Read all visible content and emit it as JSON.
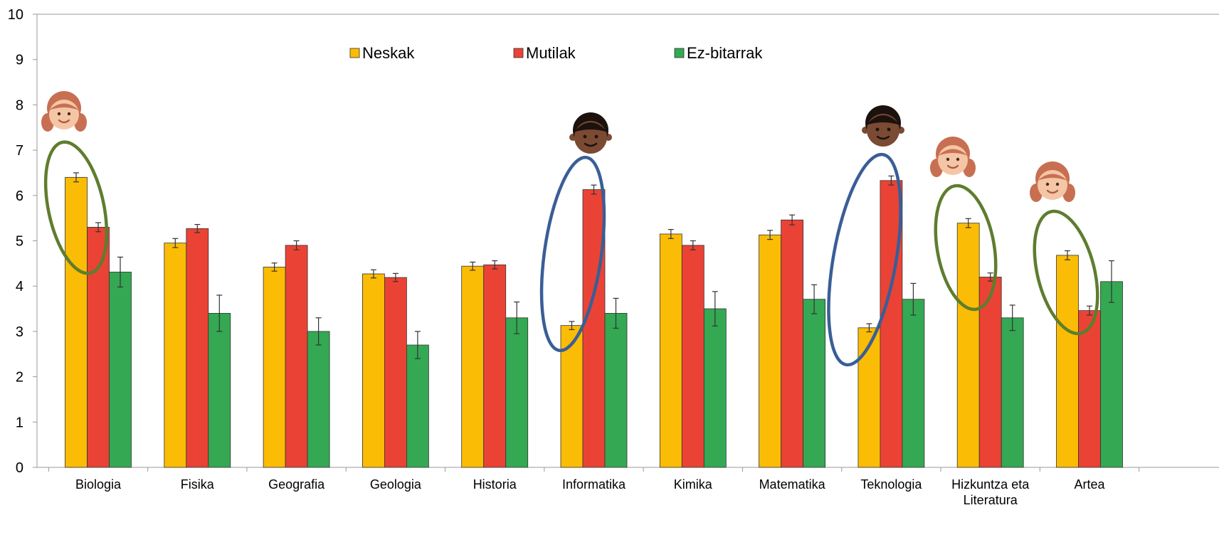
{
  "chart_data": {
    "type": "bar",
    "title": "",
    "xlabel": "",
    "ylabel": "",
    "ylim": [
      0,
      10
    ],
    "yticks": [
      0,
      1,
      2,
      3,
      4,
      5,
      6,
      7,
      8,
      9,
      10
    ],
    "grid": false,
    "legend_position": "top-center",
    "categories": [
      [
        "Biologia"
      ],
      [
        "Fisika"
      ],
      [
        "Geografia"
      ],
      [
        "Geologia"
      ],
      [
        "Historia"
      ],
      [
        "Informatika"
      ],
      [
        "Kimika"
      ],
      [
        "Matematika"
      ],
      [
        "Teknologia"
      ],
      [
        "Hizkuntza eta",
        "Literatura"
      ],
      [
        "Artea"
      ]
    ],
    "series": [
      {
        "name": "Neskak",
        "color": "#FBBC05",
        "values": [
          6.4,
          4.95,
          4.42,
          4.27,
          4.44,
          3.13,
          5.15,
          5.13,
          3.08,
          5.39,
          4.68
        ],
        "errors": [
          0.1,
          0.1,
          0.09,
          0.09,
          0.09,
          0.09,
          0.1,
          0.1,
          0.09,
          0.1,
          0.1
        ]
      },
      {
        "name": "Mutilak",
        "color": "#EA4335",
        "values": [
          5.3,
          5.27,
          4.9,
          4.19,
          4.47,
          6.13,
          4.9,
          5.46,
          6.33,
          4.2,
          3.46
        ],
        "errors": [
          0.1,
          0.09,
          0.1,
          0.09,
          0.09,
          0.1,
          0.1,
          0.11,
          0.1,
          0.09,
          0.1
        ]
      },
      {
        "name": "Ez-bitarrak",
        "color": "#34A853",
        "values": [
          4.31,
          3.4,
          3.0,
          2.7,
          3.3,
          3.4,
          3.5,
          3.71,
          3.71,
          3.3,
          4.1
        ],
        "errors": [
          0.33,
          0.4,
          0.3,
          0.3,
          0.35,
          0.33,
          0.38,
          0.32,
          0.35,
          0.28,
          0.46
        ]
      }
    ],
    "annotations": [
      {
        "category": "Biologia",
        "shape": "ellipse",
        "color": "#5E7D2E",
        "icon": "girl-face-icon"
      },
      {
        "category": "Informatika",
        "shape": "ellipse",
        "color": "#3A5E96",
        "icon": "boy-face-icon"
      },
      {
        "category": "Teknologia",
        "shape": "ellipse",
        "color": "#3A5E96",
        "icon": "boy-face-icon"
      },
      {
        "category": "Hizkuntza eta Literatura",
        "shape": "ellipse",
        "color": "#5E7D2E",
        "icon": "girl-face-icon"
      },
      {
        "category": "Artea",
        "shape": "ellipse",
        "color": "#5E7D2E",
        "icon": "girl-face-icon"
      }
    ]
  }
}
